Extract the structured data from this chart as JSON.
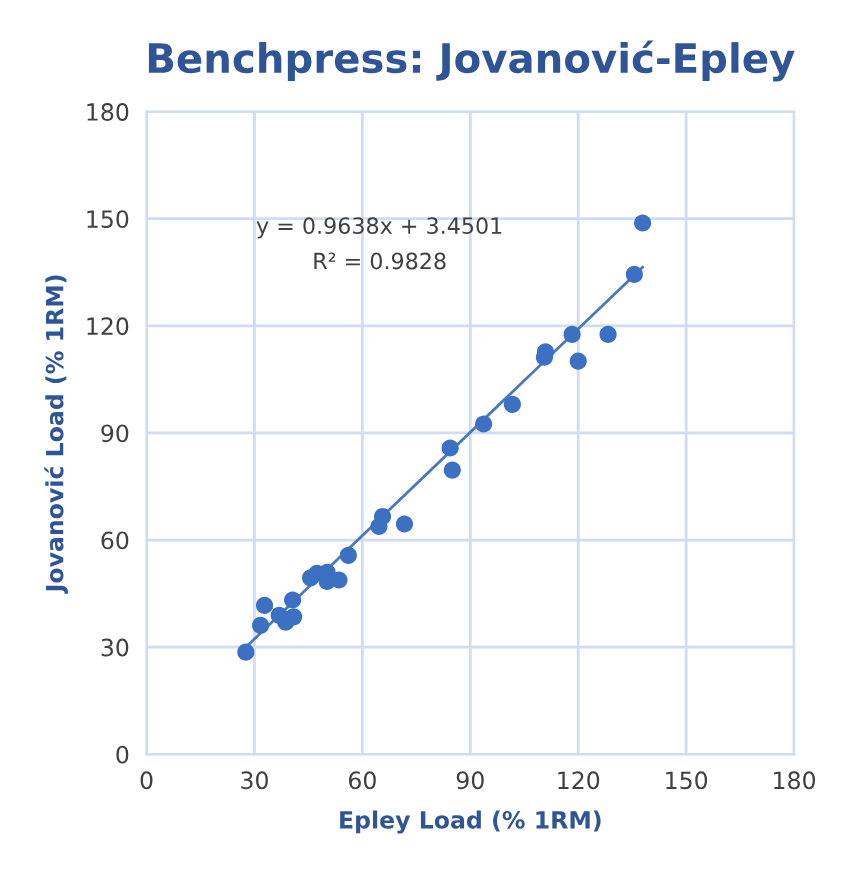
{
  "chart_data": {
    "type": "scatter",
    "title": "Benchpress: Jovanović-Epley",
    "xlabel": "Epley Load (% 1RM)",
    "ylabel": "Jovanović Load (% 1RM)",
    "series": [
      {
        "color": "#3b70c2",
        "marker": "circle",
        "x": [
          27.6,
          31.7,
          32.8,
          36.9,
          38.7,
          40.9,
          40.6,
          45.6,
          47.4,
          50.2,
          50.2,
          53.5,
          56.1,
          64.6,
          65.6,
          71.7,
          85.0,
          84.4,
          93.7,
          101.7,
          110.6,
          110.9,
          120.0,
          118.3,
          128.3,
          135.6,
          137.9
        ],
        "values": [
          28.6,
          36.1,
          41.7,
          38.9,
          37.0,
          38.5,
          43.2,
          49.4,
          50.7,
          51.0,
          48.4,
          48.8,
          55.7,
          63.8,
          66.6,
          64.5,
          79.6,
          85.8,
          92.5,
          98.0,
          111.2,
          112.7,
          110.1,
          117.6,
          117.6,
          134.4,
          148.8
        ]
      },
      {
        "type": "line",
        "color": "#4a78bf",
        "x": [
          27.6,
          137.9
        ],
        "values": [
          30,
          136.4
        ]
      }
    ],
    "annotations": [
      "y = 0.9638x + 3.4501",
      "R² = 0.9828"
    ],
    "xlim": [
      0,
      180
    ],
    "ylim": [
      0,
      180
    ],
    "xticks": [
      0,
      30,
      60,
      90,
      120,
      150,
      180
    ],
    "yticks": [
      0,
      30,
      60,
      90,
      120,
      150,
      180
    ],
    "grid": true,
    "legend": false
  }
}
